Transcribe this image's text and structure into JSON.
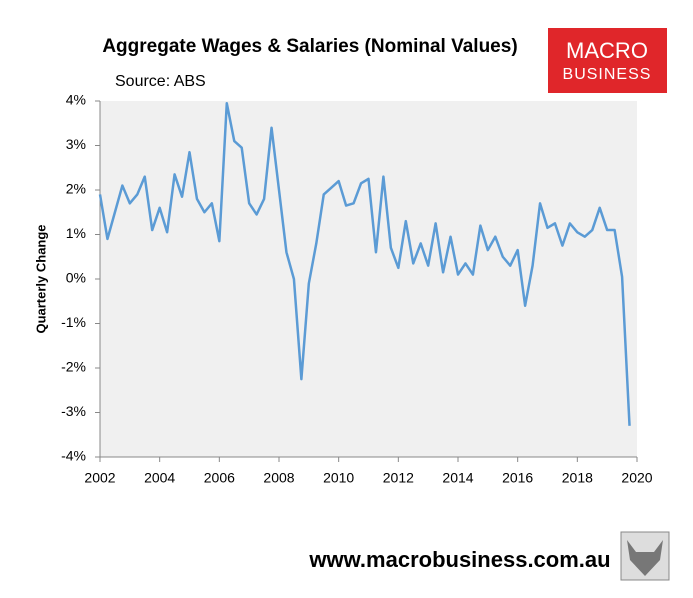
{
  "chart_data": {
    "type": "line",
    "title": "Aggregate Wages & Salaries (Nominal Values)",
    "subtitle": "Source: ABS",
    "ylabel": "Quarterly Change",
    "x": [
      2002,
      2002.25,
      2002.5,
      2002.75,
      2003,
      2003.25,
      2003.5,
      2003.75,
      2004,
      2004.25,
      2004.5,
      2004.75,
      2005,
      2005.25,
      2005.5,
      2005.75,
      2006,
      2006.25,
      2006.5,
      2006.75,
      2007,
      2007.25,
      2007.5,
      2007.75,
      2008,
      2008.25,
      2008.5,
      2008.75,
      2009,
      2009.25,
      2009.5,
      2009.75,
      2010,
      2010.25,
      2010.5,
      2010.75,
      2011,
      2011.25,
      2011.5,
      2011.75,
      2012,
      2012.25,
      2012.5,
      2012.75,
      2013,
      2013.25,
      2013.5,
      2013.75,
      2014,
      2014.25,
      2014.5,
      2014.75,
      2015,
      2015.25,
      2015.5,
      2015.75,
      2016,
      2016.25,
      2016.5,
      2016.75,
      2017,
      2017.25,
      2017.5,
      2017.75,
      2018,
      2018.25,
      2018.5,
      2018.75,
      2019,
      2019.25,
      2019.5,
      2019.75
    ],
    "series": [
      {
        "name": "Quarterly Change",
        "color": "#5b9bd5",
        "values": [
          1.9,
          0.9,
          1.5,
          2.1,
          1.7,
          1.9,
          2.3,
          1.1,
          1.6,
          1.05,
          2.35,
          1.85,
          2.85,
          1.8,
          1.5,
          1.7,
          0.85,
          3.95,
          3.1,
          2.95,
          1.7,
          1.45,
          1.8,
          3.4,
          2.0,
          0.6,
          0.0,
          -2.25,
          -0.1,
          0.8,
          1.9,
          2.05,
          2.2,
          1.65,
          1.7,
          2.15,
          2.25,
          0.6,
          2.3,
          0.7,
          0.25,
          1.3,
          0.35,
          0.8,
          0.3,
          1.25,
          0.15,
          0.95,
          0.1,
          0.35,
          0.1,
          1.2,
          0.65,
          0.95,
          0.5,
          0.3,
          0.65,
          -0.6,
          0.3,
          1.7,
          1.15,
          1.25,
          0.75,
          1.25,
          1.05,
          0.95,
          1.1,
          1.6,
          1.1,
          1.1,
          0.05,
          -3.3
        ]
      }
    ],
    "xlim": [
      2002,
      2020
    ],
    "xticks": [
      2002,
      2004,
      2006,
      2008,
      2010,
      2012,
      2014,
      2016,
      2018,
      2020
    ],
    "ylim": [
      -4,
      4
    ],
    "yticks": [
      {
        "value": -4,
        "label": "-4%"
      },
      {
        "value": -3,
        "label": "-3%"
      },
      {
        "value": -2,
        "label": "-2%"
      },
      {
        "value": -1,
        "label": "-1%"
      },
      {
        "value": 0,
        "label": "0%"
      },
      {
        "value": 1,
        "label": "1%"
      },
      {
        "value": 2,
        "label": "2%"
      },
      {
        "value": 3,
        "label": "3%"
      },
      {
        "value": 4,
        "label": "4%"
      }
    ],
    "grid": false
  },
  "logo": {
    "line1": "MACRO",
    "line2": "BUSINESS"
  },
  "footer": "www.macrobusiness.com.au"
}
